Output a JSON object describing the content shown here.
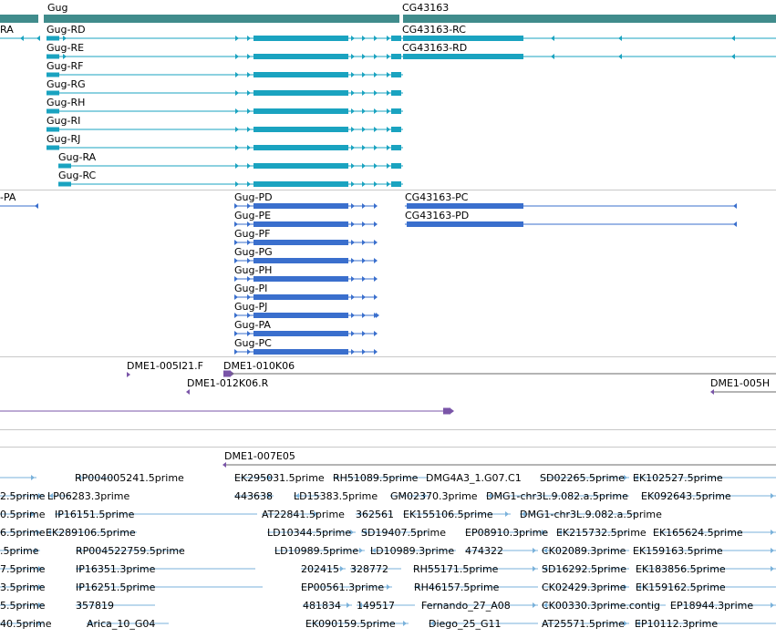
{
  "colors": {
    "gene": "#408c8c",
    "track1": "#1aa3c0",
    "track2": "#3a6fcd",
    "clone": "#7a55a8",
    "est": "#7ab2db",
    "separator": "#c8c8c8"
  },
  "genes": {
    "left": "Gug",
    "right": "CG43163",
    "cut_label": "RA"
  },
  "track1": {
    "left": [
      "Gug-RD",
      "Gug-RE",
      "Gug-RF",
      "Gug-RG",
      "Gug-RH",
      "Gug-RI",
      "Gug-RJ",
      "Gug-RA",
      "Gug-RC"
    ],
    "right": [
      "CG43163-RC",
      "CG43163-RD"
    ]
  },
  "track2": {
    "cut_label": "-PA",
    "left": [
      "Gug-PD",
      "Gug-PE",
      "Gug-PF",
      "Gug-PG",
      "Gug-PH",
      "Gug-PI",
      "Gug-PJ",
      "Gug-PA",
      "Gug-PC"
    ],
    "right": [
      "CG43163-PC",
      "CG43163-PD"
    ]
  },
  "clones": {
    "a": "DME1-005I21.F",
    "b": "DME1-010K06",
    "c": "DME1-012K06.R",
    "d": "DME1-005H",
    "e": "DME1-007E05"
  },
  "ests": [
    "RP004005241.5prime",
    "EK295031.5prime",
    "RH51089.5prime",
    "DMG4A3_1.G07.C1",
    "SD02265.5prime",
    "EK102527.5prime",
    "2.5prime",
    "LP06283.3prime",
    "443638",
    "LD15383.5prime",
    "GM02370.3prime",
    "DMG1-chr3L.9.082.a.5prime",
    "EK092643.5prime",
    "0.5prime",
    "IP16151.5prime",
    "AT22841.5prime",
    "362561",
    "EK155106.5prime",
    "DMG1-chr3L.9.082.a.5prime",
    "6.5prime",
    "EK289106.5prime",
    "LD10344.5prime",
    "SD19407.5prime",
    "EP08910.3prime",
    "EK215732.5prime",
    "EK165624.5prime",
    ".5prime",
    "RP004522759.5prime",
    "LD10989.5prime",
    "LD10989.3prime",
    "474322",
    "CK02089.3prime",
    "EK159163.5prime",
    "7.5prime",
    "IP16351.3prime",
    "202415",
    "328772",
    "RH55171.5prime",
    "SD16292.5prime",
    "EK183856.5prime",
    "3.5prime",
    "IP16251.5prime",
    "EP00561.3prime",
    "RH46157.5prime",
    "CK02429.3prime",
    "EK159162.5prime",
    "5.5prime",
    "357819",
    "481834",
    "149517",
    "Fernando_27_A08",
    "CK00330.3prime.contig",
    "EP18944.3prime",
    "40.5prime",
    "Arica_10_G04",
    "EK090159.5prime",
    "Diego_25_G11",
    "AT25571.5prime",
    "EP10112.3prime"
  ]
}
